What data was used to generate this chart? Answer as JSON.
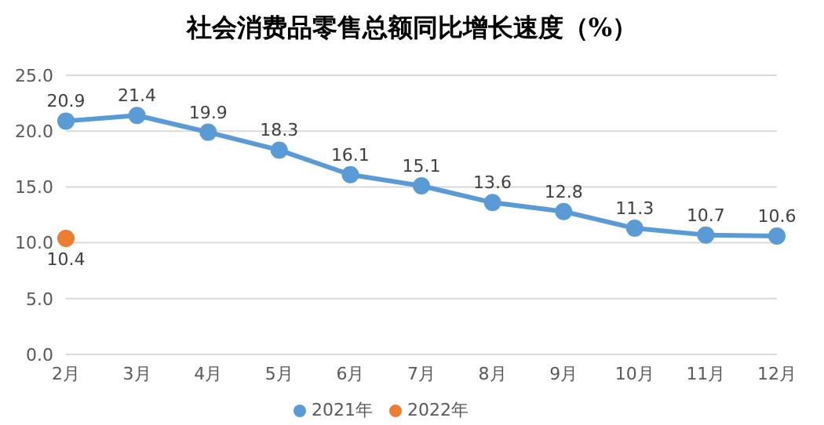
{
  "chart_data": {
    "type": "line",
    "title": "社会消费品零售总额同比增长速度（%）",
    "categories": [
      "2月",
      "3月",
      "4月",
      "5月",
      "6月",
      "7月",
      "8月",
      "9月",
      "10月",
      "11月",
      "12月"
    ],
    "series": [
      {
        "name": "2021年",
        "color": "#5b9bd5",
        "values": [
          20.9,
          21.4,
          19.9,
          18.3,
          16.1,
          15.1,
          13.6,
          12.8,
          11.3,
          10.7,
          10.6
        ]
      },
      {
        "name": "2022年",
        "color": "#ed7d31",
        "values": [
          10.4,
          null,
          null,
          null,
          null,
          null,
          null,
          null,
          null,
          null,
          null
        ]
      }
    ],
    "ylim": [
      0,
      25
    ],
    "yticks": [
      {
        "value": 0,
        "label": "0.0"
      },
      {
        "value": 5,
        "label": "5.0"
      },
      {
        "value": 10,
        "label": "10.0"
      },
      {
        "value": 15,
        "label": "15.0"
      },
      {
        "value": 20,
        "label": "20.0"
      },
      {
        "value": 25,
        "label": "25.0"
      }
    ],
    "grid": "y",
    "legend": "bottom",
    "marker": "circle",
    "line_style": "solid",
    "data_labels": true
  }
}
